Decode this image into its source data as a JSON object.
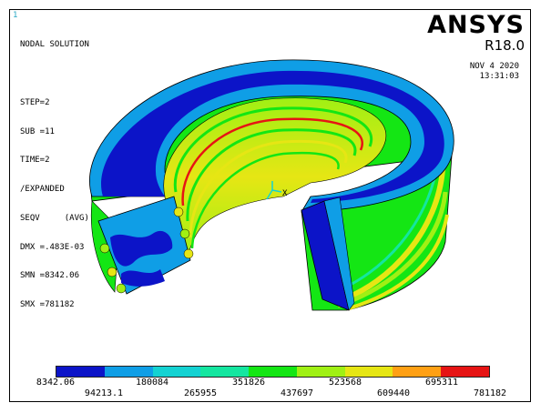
{
  "window": {
    "number": "1"
  },
  "brand": {
    "name": "ANSYS",
    "release": "R18.0"
  },
  "info": {
    "lines": [
      "NODAL SOLUTION",
      "",
      "STEP=2",
      "SUB =11",
      "TIME=2",
      "/EXPANDED",
      "SEQV     (AVG)",
      "DMX =.483E-03",
      "SMN =8342.06",
      "SMX =781182"
    ]
  },
  "datetime": {
    "date": "NOV  4 2020",
    "time": "13:31:03"
  },
  "triad": {
    "x_label": "X"
  },
  "legend": {
    "colors": [
      "#0c14c8",
      "#0f9ee6",
      "#14d2d2",
      "#14e6a0",
      "#14e614",
      "#a0f014",
      "#e6e614",
      "#ffa014",
      "#e61414"
    ],
    "labels_top": [
      "8342.06",
      "180084",
      "351826",
      "523568",
      "695311"
    ],
    "labels_bottom": [
      "94213.1",
      "265955",
      "437697",
      "609440",
      "781182"
    ]
  }
}
